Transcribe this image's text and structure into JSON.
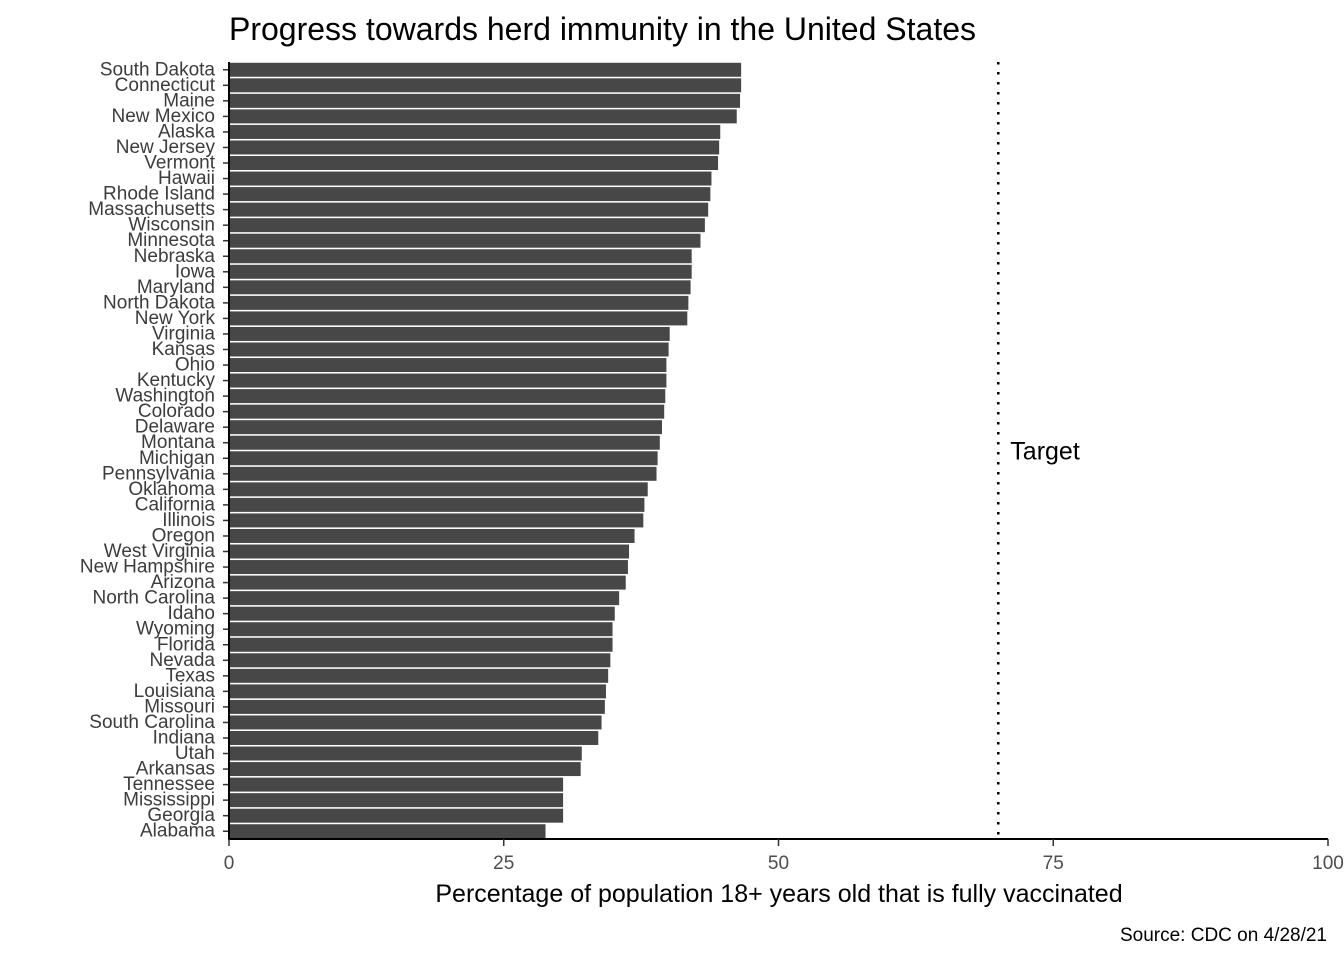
{
  "chart_data": {
    "type": "bar",
    "orientation": "horizontal",
    "title": "Progress towards herd immunity in the United States",
    "xlabel": "Percentage of population 18+ years old that is fully vaccinated",
    "ylabel": "",
    "caption": "Source: CDC on 4/28/21",
    "xlim": [
      0,
      100
    ],
    "xticks": [
      "0",
      "25",
      "50",
      "75",
      "100"
    ],
    "bar_color": "#474747",
    "grid": false,
    "legend": "none",
    "categories": [
      "South Dakota",
      "Connecticut",
      "Maine",
      "New Mexico",
      "Alaska",
      "New Jersey",
      "Vermont",
      "Hawaii",
      "Rhode Island",
      "Massachusetts",
      "Wisconsin",
      "Minnesota",
      "Nebraska",
      "Iowa",
      "Maryland",
      "North Dakota",
      "New York",
      "Virginia",
      "Kansas",
      "Ohio",
      "Kentucky",
      "Washington",
      "Colorado",
      "Delaware",
      "Montana",
      "Michigan",
      "Pennsylvania",
      "Oklahoma",
      "California",
      "Illinois",
      "Oregon",
      "West Virginia",
      "New Hampshire",
      "Arizona",
      "North Carolina",
      "Idaho",
      "Wyoming",
      "Florida",
      "Nevada",
      "Texas",
      "Louisiana",
      "Missouri",
      "South Carolina",
      "Indiana",
      "Utah",
      "Arkansas",
      "Tennessee",
      "Mississippi",
      "Georgia",
      "Alabama"
    ],
    "values": [
      46.6,
      46.6,
      46.5,
      46.2,
      44.7,
      44.6,
      44.5,
      43.9,
      43.8,
      43.6,
      43.3,
      42.9,
      42.1,
      42.1,
      42.0,
      41.8,
      41.7,
      40.1,
      40.0,
      39.8,
      39.8,
      39.7,
      39.6,
      39.4,
      39.2,
      39.0,
      38.9,
      38.1,
      37.8,
      37.7,
      36.9,
      36.4,
      36.3,
      36.1,
      35.5,
      35.1,
      34.9,
      34.9,
      34.7,
      34.5,
      34.3,
      34.2,
      33.9,
      33.6,
      32.1,
      32.0,
      30.4,
      30.4,
      30.4,
      28.8
    ],
    "reference_line": {
      "value": 70,
      "style": "dotted",
      "label": "Target"
    }
  }
}
